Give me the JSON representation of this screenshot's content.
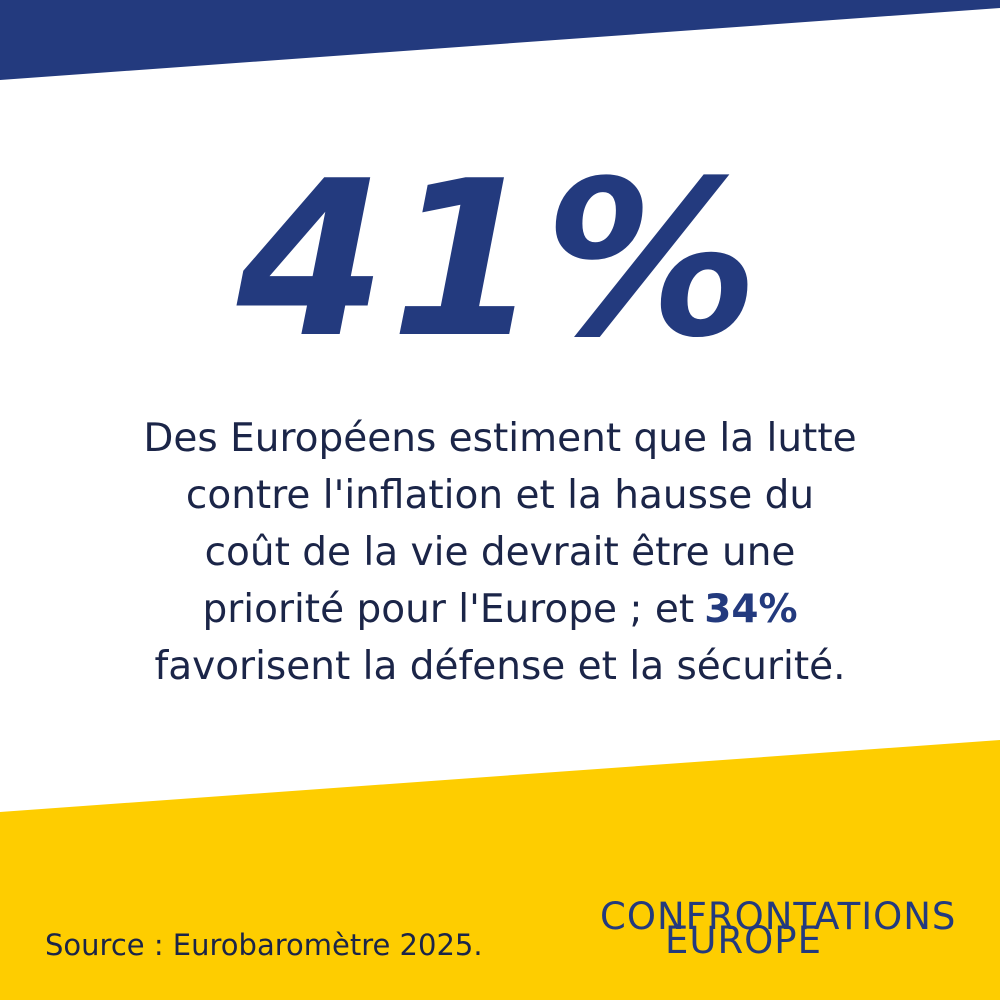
{
  "headline": {
    "value": "41%"
  },
  "body": {
    "lines": [
      "Des Européens estiment que la lutte",
      "contre l'inflation et la hausse du",
      "coût de la vie devrait être une",
      "priorité pour l'Europe ; et",
      "favorisent la défense et la sécurité."
    ],
    "highlight": "34%"
  },
  "footer": {
    "source": "Source : Eurobaromètre 2025.",
    "logo": {
      "line_1": "CONFRONTATIONS",
      "line_2": "EUROPE"
    }
  }
}
